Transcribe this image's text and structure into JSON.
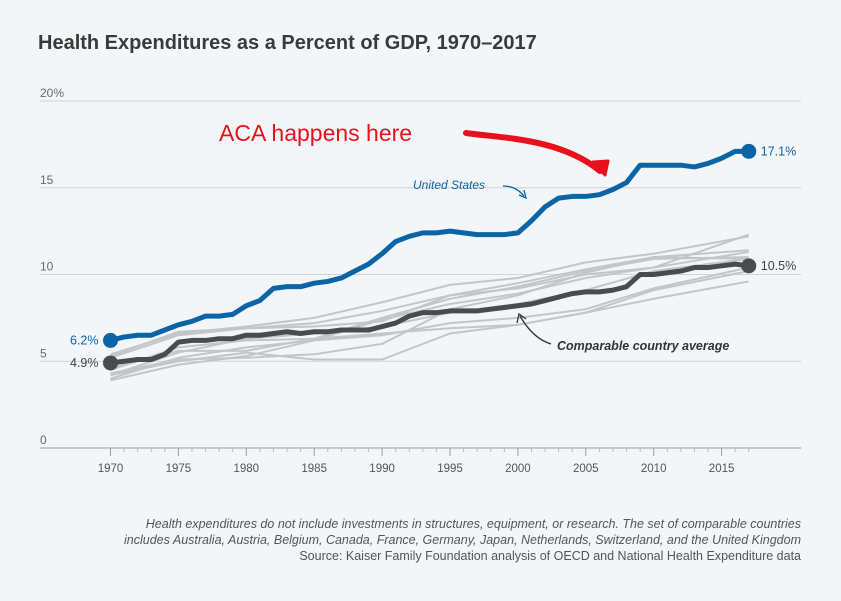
{
  "chart_data": {
    "type": "line",
    "title": "Health Expenditures as a Percent of GDP, 1970–2017",
    "y_ticks": [
      "20%",
      "15",
      "10",
      "5",
      "0"
    ],
    "y_tick_values": [
      20,
      15,
      10,
      5,
      0
    ],
    "x_ticks": [
      "1970",
      "1975",
      "1980",
      "1985",
      "1990",
      "1995",
      "2000",
      "2005",
      "2010",
      "2015"
    ],
    "x_tick_values": [
      1970,
      1975,
      1980,
      1985,
      1990,
      1995,
      2000,
      2005,
      2010,
      2015
    ],
    "ylim": [
      0,
      20
    ],
    "xlim": [
      1965,
      2021
    ],
    "grid": "horizontal",
    "colors": {
      "us": "#0b64a6",
      "avg": "#4b4b4d",
      "other": "#c2c6c9",
      "annotation": "#e8101d"
    },
    "series": [
      {
        "name": "United States",
        "x": [
          1970,
          1971,
          1972,
          1973,
          1974,
          1975,
          1976,
          1977,
          1978,
          1979,
          1980,
          1981,
          1982,
          1983,
          1984,
          1985,
          1986,
          1987,
          1988,
          1989,
          1990,
          1991,
          1992,
          1993,
          1994,
          1995,
          1996,
          1997,
          1998,
          1999,
          2000,
          2001,
          2002,
          2003,
          2004,
          2005,
          2006,
          2007,
          2008,
          2009,
          2010,
          2011,
          2012,
          2013,
          2014,
          2015,
          2016,
          2017
        ],
        "values": [
          6.2,
          6.4,
          6.5,
          6.5,
          6.8,
          7.1,
          7.3,
          7.6,
          7.6,
          7.7,
          8.2,
          8.5,
          9.2,
          9.3,
          9.3,
          9.5,
          9.6,
          9.8,
          10.2,
          10.6,
          11.2,
          11.9,
          12.2,
          12.4,
          12.4,
          12.5,
          12.4,
          12.3,
          12.3,
          12.3,
          12.4,
          13.1,
          13.9,
          14.4,
          14.5,
          14.5,
          14.6,
          14.9,
          15.3,
          16.3,
          16.3,
          16.3,
          16.3,
          16.2,
          16.4,
          16.7,
          17.1,
          17.1
        ]
      },
      {
        "name": "Comparable country average",
        "x": [
          1970,
          1971,
          1972,
          1973,
          1974,
          1975,
          1976,
          1977,
          1978,
          1979,
          1980,
          1981,
          1982,
          1983,
          1984,
          1985,
          1986,
          1987,
          1988,
          1989,
          1990,
          1991,
          1992,
          1993,
          1994,
          1995,
          1996,
          1997,
          1998,
          1999,
          2000,
          2001,
          2002,
          2003,
          2004,
          2005,
          2006,
          2007,
          2008,
          2009,
          2010,
          2011,
          2012,
          2013,
          2014,
          2015,
          2016,
          2017
        ],
        "values": [
          4.9,
          5.0,
          5.1,
          5.1,
          5.4,
          6.1,
          6.2,
          6.2,
          6.3,
          6.3,
          6.5,
          6.5,
          6.6,
          6.7,
          6.6,
          6.7,
          6.7,
          6.8,
          6.8,
          6.8,
          7.0,
          7.2,
          7.6,
          7.8,
          7.8,
          7.9,
          7.9,
          7.9,
          8.0,
          8.1,
          8.2,
          8.3,
          8.5,
          8.7,
          8.9,
          9.0,
          9.0,
          9.1,
          9.3,
          10.0,
          10.0,
          10.1,
          10.2,
          10.4,
          10.4,
          10.5,
          10.6,
          10.5
        ]
      }
    ],
    "others": [
      [
        1970,
        4.2,
        1975,
        5.5,
        1980,
        6.3,
        1985,
        6.6,
        1990,
        7.0,
        1995,
        7.8,
        2000,
        8.3,
        2005,
        9.1,
        2010,
        10.2,
        2017,
        10.9
      ],
      [
        1970,
        5.2,
        1975,
        6.5,
        1980,
        6.9,
        1985,
        7.0,
        1990,
        7.3,
        1995,
        8.8,
        2000,
        9.5,
        2005,
        10.3,
        2010,
        11.0,
        2017,
        11.4
      ],
      [
        1970,
        5.4,
        1975,
        6.6,
        1980,
        7.0,
        1985,
        7.5,
        1990,
        8.4,
        1995,
        9.4,
        2000,
        9.8,
        2005,
        10.7,
        2010,
        11.2,
        2017,
        12.2
      ],
      [
        1970,
        4.5,
        1975,
        5.8,
        1980,
        6.2,
        1985,
        6.3,
        1990,
        6.6,
        1995,
        6.9,
        2000,
        7.1,
        2005,
        7.8,
        2010,
        9.1,
        2017,
        10.2
      ],
      [
        1970,
        4.0,
        1975,
        5.2,
        1980,
        5.8,
        1985,
        6.2,
        1990,
        7.4,
        1995,
        8.3,
        2000,
        8.9,
        2005,
        9.8,
        2010,
        10.4,
        2017,
        11.3
      ],
      [
        1970,
        3.9,
        1975,
        4.8,
        1980,
        5.3,
        1985,
        6.2,
        1990,
        6.5,
        1995,
        7.2,
        2000,
        7.5,
        2005,
        8.0,
        2010,
        9.2,
        2017,
        10.4
      ],
      [
        1970,
        4.3,
        1975,
        5.1,
        1980,
        5.2,
        1985,
        5.4,
        1990,
        6.0,
        1995,
        8.0,
        2000,
        8.8,
        2005,
        10.1,
        2010,
        11.0,
        2017,
        10.9
      ],
      [
        1970,
        4.2,
        1975,
        5.0,
        1980,
        5.5,
        1985,
        5.1,
        1990,
        5.1,
        1995,
        6.6,
        2000,
        7.1,
        2005,
        7.8,
        2010,
        8.6,
        2017,
        9.6
      ],
      [
        1970,
        5.3,
        1975,
        6.7,
        1980,
        6.9,
        1985,
        7.2,
        1990,
        7.9,
        1995,
        8.8,
        2000,
        9.2,
        2005,
        10.0,
        2010,
        10.4,
        2017,
        12.3
      ],
      [
        1970,
        4.6,
        1975,
        5.6,
        1980,
        5.6,
        1985,
        6.3,
        1990,
        7.5,
        1995,
        8.6,
        2000,
        9.3,
        2005,
        10.2,
        2010,
        10.9,
        2017,
        11.0
      ]
    ],
    "point_labels": {
      "us_start": "6.2%",
      "us_end": "17.1%",
      "avg_start": "4.9%",
      "avg_end": "10.5%"
    },
    "annotations": {
      "united_states": "United States",
      "comparable": "Comparable country average",
      "aca": "ACA happens here"
    }
  },
  "notes": {
    "line1": "Health expenditures do not include investments in structures, equipment, or research. The set of comparable countries",
    "line2": "includes Australia, Austria, Belgium, Canada, France, Germany, Japan, Netherlands, Switzerland, and the United Kingdom",
    "source": "Source: Kaiser Family Foundation analysis of OECD and National Health Expenditure data"
  }
}
